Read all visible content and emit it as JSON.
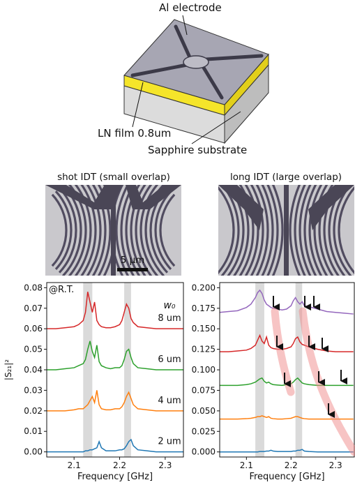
{
  "diagram": {
    "labels": [
      "Al electrode",
      "LN film 0.8um",
      "Sapphire substrate"
    ]
  },
  "micrographs": {
    "captions": [
      "shot IDT (small overlap)",
      "long IDT (large overlap)"
    ],
    "scale_bar": "5 µm"
  },
  "chart_data": [
    {
      "type": "line",
      "xlabel": "Frequency [GHz]",
      "ylabel": "|S₂₁|²",
      "annotations": [
        "@R.T.",
        "w₀"
      ],
      "xlim": [
        2.04,
        2.34
      ],
      "ylim": [
        -0.0025,
        0.0825
      ],
      "xticks": [
        2.1,
        2.2,
        2.3
      ],
      "yticks": [
        {
          "value": 0,
          "label": "0.00"
        },
        {
          "value": 0.01,
          "label": "0.01"
        },
        {
          "value": 0.02,
          "label": "0.02"
        },
        {
          "value": 0.03,
          "label": "0.03"
        },
        {
          "value": 0.04,
          "label": "0.04"
        },
        {
          "value": 0.05,
          "label": "0.05"
        },
        {
          "value": 0.06,
          "label": "0.06"
        },
        {
          "value": 0.07,
          "label": "0.07"
        },
        {
          "value": 0.08,
          "label": "0.08"
        }
      ],
      "highlight_ranges": [
        [
          2.12,
          2.14
        ],
        [
          2.21,
          2.225
        ]
      ],
      "x": [
        2.04,
        2.06,
        2.08,
        2.1,
        2.11,
        2.12,
        2.125,
        2.13,
        2.135,
        2.14,
        2.145,
        2.15,
        2.155,
        2.16,
        2.17,
        2.18,
        2.19,
        2.2,
        2.205,
        2.21,
        2.215,
        2.22,
        2.225,
        2.23,
        2.24,
        2.26,
        2.28,
        2.3,
        2.32,
        2.34
      ],
      "series": [
        {
          "name": "8 um",
          "color": "#d62728",
          "values": [
            0.06,
            0.06,
            0.0605,
            0.061,
            0.062,
            0.064,
            0.068,
            0.078,
            0.073,
            0.068,
            0.073,
            0.064,
            0.062,
            0.061,
            0.0605,
            0.0605,
            0.061,
            0.062,
            0.064,
            0.068,
            0.072,
            0.07,
            0.065,
            0.063,
            0.061,
            0.0605,
            0.06,
            0.06,
            0.06,
            0.06
          ]
        },
        {
          "name": "6 um",
          "color": "#2ca02c",
          "values": [
            0.04,
            0.04,
            0.0405,
            0.041,
            0.042,
            0.043,
            0.045,
            0.05,
            0.054,
            0.049,
            0.046,
            0.052,
            0.044,
            0.042,
            0.041,
            0.0405,
            0.041,
            0.041,
            0.042,
            0.045,
            0.049,
            0.05,
            0.046,
            0.043,
            0.041,
            0.0405,
            0.04,
            0.04,
            0.04,
            0.04
          ]
        },
        {
          "name": "4 um",
          "color": "#ff7f0e",
          "values": [
            0.02,
            0.02,
            0.02,
            0.0205,
            0.021,
            0.021,
            0.022,
            0.023,
            0.025,
            0.027,
            0.024,
            0.03,
            0.023,
            0.021,
            0.0205,
            0.0205,
            0.021,
            0.021,
            0.022,
            0.024,
            0.027,
            0.029,
            0.026,
            0.023,
            0.021,
            0.0205,
            0.02,
            0.02,
            0.02,
            0.02
          ]
        },
        {
          "name": "2 um",
          "color": "#1f77b4",
          "values": [
            0,
            0,
            0,
            0,
            0,
            0,
            0.0005,
            0.0005,
            0.001,
            0.001,
            0.0015,
            0.002,
            0.005,
            0.002,
            0.0005,
            0.0005,
            0.0005,
            0.001,
            0.001,
            0.0015,
            0.003,
            0.005,
            0.006,
            0.003,
            0.001,
            0.0005,
            0,
            0,
            0,
            0
          ]
        }
      ]
    },
    {
      "type": "line",
      "xlabel": "Frequency [GHz]",
      "xlim": [
        2.04,
        2.342
      ],
      "ylim": [
        -0.0062,
        0.2063
      ],
      "xticks": [
        2.1,
        2.2,
        2.3
      ],
      "yticks": [
        {
          "value": 0,
          "label": "0.000"
        },
        0.025,
        {
          "value": 0.05,
          "label": "0.050"
        },
        0.075,
        {
          "value": 0.1,
          "label": "0.100"
        },
        0.125,
        {
          "value": 0.15,
          "label": "0.150"
        },
        0.175,
        {
          "value": 0.2,
          "label": "0.200"
        }
      ],
      "highlight_ranges": [
        [
          2.12,
          2.14
        ],
        [
          2.21,
          2.225
        ]
      ],
      "x": [
        2.04,
        2.06,
        2.08,
        2.1,
        2.11,
        2.12,
        2.125,
        2.13,
        2.135,
        2.14,
        2.145,
        2.15,
        2.155,
        2.16,
        2.17,
        2.18,
        2.19,
        2.2,
        2.205,
        2.21,
        2.215,
        2.22,
        2.225,
        2.23,
        2.24,
        2.26,
        2.28,
        2.3,
        2.32,
        2.34
      ],
      "series": [
        {
          "color": "#9467bd",
          "values": [
            0.17,
            0.171,
            0.172,
            0.176,
            0.18,
            0.188,
            0.194,
            0.197,
            0.193,
            0.185,
            0.18,
            0.178,
            0.176,
            0.175,
            0.174,
            0.173,
            0.174,
            0.178,
            0.184,
            0.188,
            0.183,
            0.18,
            0.183,
            0.178,
            0.177,
            0.174,
            0.171,
            0.17,
            0.169,
            0.168
          ]
        },
        {
          "color": "#d62728",
          "values": [
            0.122,
            0.122,
            0.123,
            0.124,
            0.126,
            0.13,
            0.136,
            0.142,
            0.135,
            0.132,
            0.14,
            0.13,
            0.127,
            0.126,
            0.125,
            0.125,
            0.126,
            0.128,
            0.132,
            0.138,
            0.14,
            0.134,
            0.131,
            0.13,
            0.128,
            0.125,
            0.123,
            0.122,
            0.122,
            0.122
          ]
        },
        {
          "color": "#2ca02c",
          "values": [
            0.081,
            0.081,
            0.081,
            0.082,
            0.083,
            0.085,
            0.087,
            0.089,
            0.09,
            0.086,
            0.084,
            0.085,
            0.083,
            0.082,
            0.0815,
            0.081,
            0.082,
            0.083,
            0.085,
            0.088,
            0.09,
            0.087,
            0.084,
            0.083,
            0.082,
            0.081,
            0.081,
            0.081,
            0.081,
            0.081
          ]
        },
        {
          "color": "#ff7f0e",
          "values": [
            0.04,
            0.04,
            0.04,
            0.0405,
            0.041,
            0.042,
            0.043,
            0.043,
            0.044,
            0.043,
            0.042,
            0.043,
            0.041,
            0.0405,
            0.04,
            0.04,
            0.0405,
            0.041,
            0.042,
            0.043,
            0.043,
            0.042,
            0.041,
            0.0405,
            0.04,
            0.04,
            0.04,
            0.04,
            0.04,
            0.04
          ]
        },
        {
          "color": "#1f77b4",
          "values": [
            0,
            0,
            0,
            0,
            0,
            0,
            0,
            0.0005,
            0.0005,
            0.0005,
            0.001,
            0.001,
            0.002,
            0.001,
            0.0005,
            0.0005,
            0.0005,
            0.0005,
            0.001,
            0.001,
            0.002,
            0.002,
            0.003,
            0.001,
            0.0005,
            0,
            0,
            0,
            0,
            0
          ]
        }
      ]
    }
  ]
}
